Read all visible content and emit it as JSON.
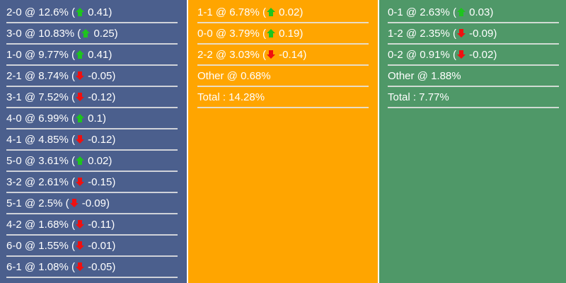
{
  "colors": {
    "home": "#4b5f8d",
    "draw": "#ffa500",
    "away": "#4f9868",
    "up": "#1ec41e",
    "down": "#f01010"
  },
  "columns": [
    {
      "name": "home",
      "rows": [
        {
          "score": "2-0",
          "pct": "12.6%",
          "dir": "up",
          "change": "0.41"
        },
        {
          "score": "3-0",
          "pct": "10.83%",
          "dir": "up",
          "change": "0.25"
        },
        {
          "score": "1-0",
          "pct": "9.77%",
          "dir": "up",
          "change": "0.41"
        },
        {
          "score": "2-1",
          "pct": "8.74%",
          "dir": "down",
          "change": "-0.05"
        },
        {
          "score": "3-1",
          "pct": "7.52%",
          "dir": "down",
          "change": "-0.12"
        },
        {
          "score": "4-0",
          "pct": "6.99%",
          "dir": "up",
          "change": "0.1"
        },
        {
          "score": "4-1",
          "pct": "4.85%",
          "dir": "down",
          "change": "-0.12"
        },
        {
          "score": "5-0",
          "pct": "3.61%",
          "dir": "up",
          "change": "0.02"
        },
        {
          "score": "3-2",
          "pct": "2.61%",
          "dir": "down",
          "change": "-0.15"
        },
        {
          "score": "5-1",
          "pct": "2.5%",
          "dir": "down",
          "change": "-0.09"
        },
        {
          "score": "4-2",
          "pct": "1.68%",
          "dir": "down",
          "change": "-0.11"
        },
        {
          "score": "6-0",
          "pct": "1.55%",
          "dir": "down",
          "change": "-0.01"
        },
        {
          "score": "6-1",
          "pct": "1.08%",
          "dir": "down",
          "change": "-0.05"
        }
      ]
    },
    {
      "name": "draw",
      "rows": [
        {
          "score": "1-1",
          "pct": "6.78%",
          "dir": "up",
          "change": "0.02"
        },
        {
          "score": "0-0",
          "pct": "3.79%",
          "dir": "up",
          "change": "0.19"
        },
        {
          "score": "2-2",
          "pct": "3.03%",
          "dir": "down",
          "change": "-0.14"
        },
        {
          "text": "Other @ 0.68%"
        },
        {
          "text": "Total : 14.28%"
        }
      ]
    },
    {
      "name": "away",
      "rows": [
        {
          "score": "0-1",
          "pct": "2.63%",
          "dir": "up",
          "change": "0.03"
        },
        {
          "score": "1-2",
          "pct": "2.35%",
          "dir": "down",
          "change": "-0.09"
        },
        {
          "score": "0-2",
          "pct": "0.91%",
          "dir": "down",
          "change": "-0.02"
        },
        {
          "text": "Other @ 1.88%"
        },
        {
          "text": "Total : 7.77%"
        }
      ]
    }
  ]
}
